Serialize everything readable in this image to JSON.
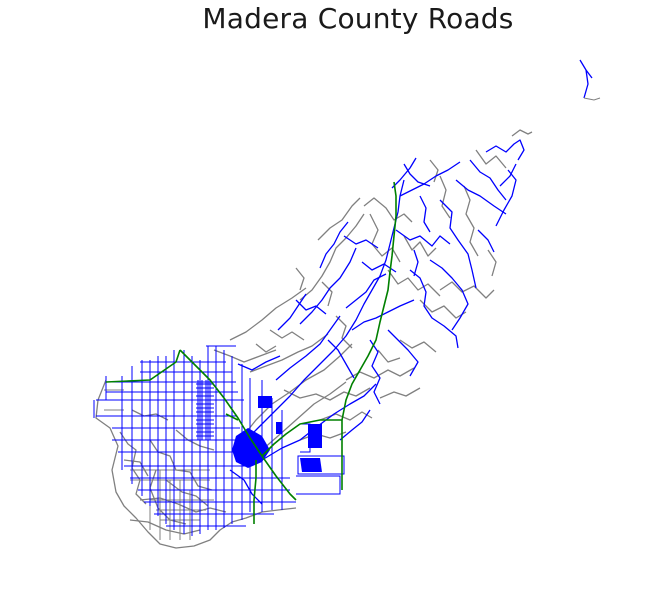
{
  "title": "Madera County Roads",
  "road_colors": {
    "primary": "#0000ff",
    "secondary": "#808080",
    "highway": "#008000"
  }
}
